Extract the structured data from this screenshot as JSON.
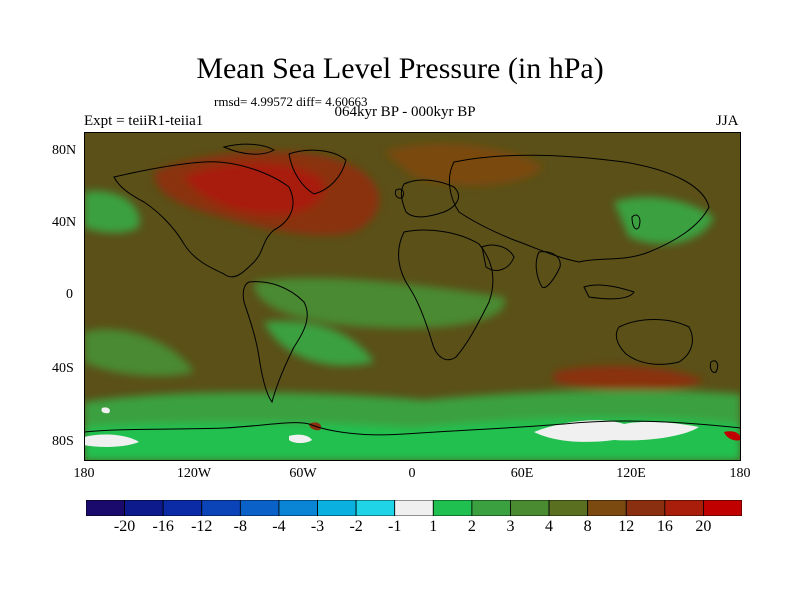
{
  "title": "Mean Sea Level Pressure (in hPa)",
  "stats": "rmsd= 4.99572  diff= 4.60663",
  "left_label": "Expt = teiiR1-teiia1",
  "center_label": "064kyr BP - 000kyr BP",
  "right_label": "JJA",
  "lat_labels": [
    "80N",
    "40N",
    "0",
    "40S",
    "80S"
  ],
  "lon_labels": [
    "180",
    "120W",
    "60W",
    "0",
    "60E",
    "120E",
    "180"
  ],
  "colorbar": {
    "labels": [
      "-20",
      "-16",
      "-12",
      "-8",
      "-4",
      "-3",
      "-2",
      "-1",
      "1",
      "2",
      "3",
      "4",
      "8",
      "12",
      "16",
      "20"
    ],
    "colors": [
      "#1a0a6b",
      "#0d1a8c",
      "#0a2aa6",
      "#0a44b8",
      "#0a62c8",
      "#0a84d4",
      "#0ab0e0",
      "#20d4e8",
      "#f0f0f0",
      "#20c050",
      "#3aa040",
      "#4a8a30",
      "#5a7020",
      "#7a4a10",
      "#8a3010",
      "#a81e0a",
      "#c00000"
    ]
  },
  "map": {
    "background_color": "#5a5018",
    "coastline_color": "#000000"
  }
}
